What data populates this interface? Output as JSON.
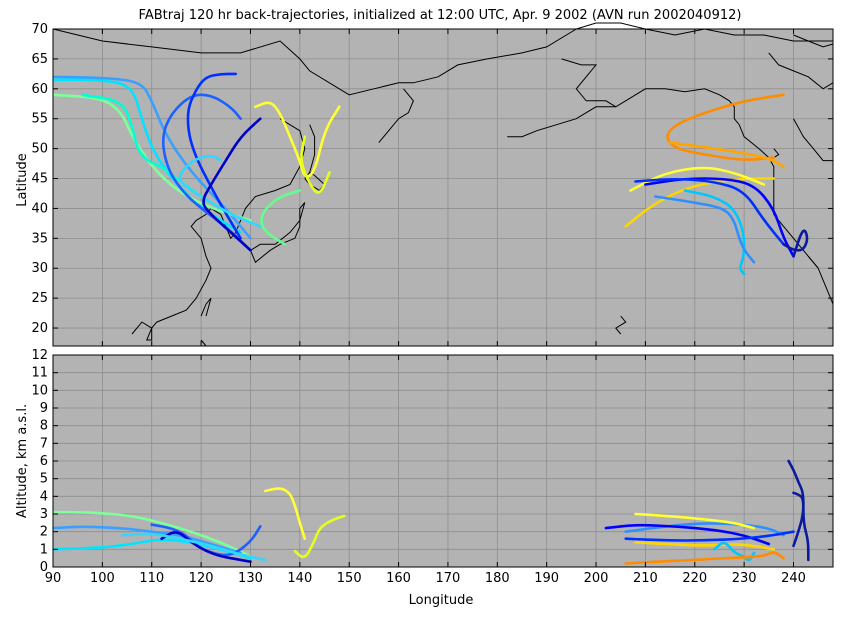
{
  "chart_data": [
    {
      "type": "line",
      "title": "FABtraj 120 hr back-trajectories, initialized at 12:00 UTC, Apr. 9 2002 (AVN run 2002040912)",
      "ylabel": "Latitude",
      "xlim": [
        90,
        248
      ],
      "ylim": [
        17,
        70
      ],
      "x_ticks": [],
      "y_ticks": [
        "20",
        "25",
        "30",
        "35",
        "40",
        "45",
        "50",
        "55",
        "60",
        "65",
        "70"
      ],
      "grid": true,
      "background": "#b3b3b3",
      "coastline_color": "#000000",
      "series": [
        {
          "color": "#00e5ff",
          "x": [
            90,
            100,
            106,
            108,
            110,
            114,
            120,
            128
          ],
          "y": [
            61.5,
            61.5,
            60.5,
            55,
            50,
            45,
            40,
            36
          ]
        },
        {
          "color": "#3aa0ff",
          "x": [
            90,
            102,
            108,
            110,
            113,
            118,
            125,
            130
          ],
          "y": [
            62,
            61.8,
            61,
            58,
            52,
            46,
            40,
            35
          ]
        },
        {
          "color": "#7dff9a",
          "x": [
            90,
            100,
            104,
            106,
            110,
            115,
            122,
            130
          ],
          "y": [
            59,
            58.5,
            56,
            52,
            47,
            43,
            40,
            38
          ]
        },
        {
          "color": "#00ffd5",
          "x": [
            96,
            104,
            106,
            107,
            109,
            112,
            115,
            120
          ],
          "y": [
            59,
            58,
            54,
            50,
            48,
            47,
            45,
            42
          ]
        },
        {
          "color": "#1e60ff",
          "x": [
            128,
            126,
            122,
            118,
            114,
            112,
            113,
            116,
            120,
            125,
            130
          ],
          "y": [
            55,
            57,
            59,
            59,
            56,
            52,
            47,
            43,
            40,
            37,
            33
          ]
        },
        {
          "color": "#0030ff",
          "x": [
            127,
            124,
            121,
            119,
            117,
            118,
            123,
            128
          ],
          "y": [
            62.5,
            62.5,
            62,
            60,
            56,
            50,
            42,
            35
          ]
        },
        {
          "color": "#33d6ff",
          "x": [
            124,
            122,
            118,
            115,
            118,
            122,
            126,
            132
          ],
          "y": [
            48,
            49,
            48,
            45,
            43,
            41,
            39,
            37
          ]
        },
        {
          "color": "#0000c8",
          "x": [
            132,
            128,
            125,
            122,
            120,
            122,
            126,
            130
          ],
          "y": [
            55,
            52,
            48,
            44,
            41,
            39,
            36,
            33
          ]
        },
        {
          "color": "#62ff8a",
          "x": [
            140,
            136,
            133,
            132,
            133,
            137
          ],
          "y": [
            43,
            42,
            40,
            38,
            36,
            34
          ]
        },
        {
          "color": "#ffff33",
          "x": [
            131,
            134,
            136,
            138,
            140,
            141,
            143,
            145,
            148
          ],
          "y": [
            57,
            58,
            56,
            52,
            48,
            45,
            46,
            53,
            57
          ]
        },
        {
          "color": "#e6ff1a",
          "x": [
            141,
            140,
            142,
            144,
            146
          ],
          "y": [
            52,
            48,
            44,
            42,
            46
          ]
        },
        {
          "color": "#ff8c00",
          "x": [
            238,
            230,
            222,
            216,
            214,
            216,
            222,
            230,
            236
          ],
          "y": [
            59,
            58,
            56,
            54,
            52,
            50,
            49,
            48,
            48.5
          ]
        },
        {
          "color": "#ffa500",
          "x": [
            215,
            224,
            232,
            236,
            238
          ],
          "y": [
            51,
            50,
            49,
            48,
            47
          ]
        },
        {
          "color": "#ffd500",
          "x": [
            206,
            212,
            220,
            230,
            236
          ],
          "y": [
            37,
            41,
            44,
            45,
            45
          ]
        },
        {
          "color": "#ffff33",
          "x": [
            207,
            214,
            222,
            228,
            234
          ],
          "y": [
            43,
            46,
            47,
            46,
            44
          ]
        },
        {
          "color": "#0000ff",
          "x": [
            210,
            218,
            226,
            232,
            236,
            238,
            240
          ],
          "y": [
            44,
            45,
            45,
            44,
            40,
            35,
            32
          ]
        },
        {
          "color": "#0030ff",
          "x": [
            208,
            216,
            224,
            230,
            234,
            238
          ],
          "y": [
            44.5,
            45,
            44.5,
            43,
            38,
            34
          ]
        },
        {
          "color": "#00c8ff",
          "x": [
            218,
            224,
            228,
            230,
            230,
            229,
            230
          ],
          "y": [
            43,
            42,
            40,
            36,
            32,
            30,
            29
          ]
        },
        {
          "color": "#2e8fff",
          "x": [
            212,
            220,
            226,
            228,
            229,
            230,
            232
          ],
          "y": [
            42,
            41,
            40,
            38,
            35,
            33,
            31
          ]
        },
        {
          "color": "#0a1aa0",
          "x": [
            238,
            240,
            242,
            243,
            242,
            240
          ],
          "y": [
            34,
            33,
            33,
            35,
            37,
            32
          ]
        }
      ]
    },
    {
      "type": "line",
      "xlabel": "Longitude",
      "ylabel": "Altitude, km a.s.l.",
      "xlim": [
        90,
        248
      ],
      "ylim": [
        0,
        12
      ],
      "x_ticks": [
        "90",
        "100",
        "110",
        "120",
        "130",
        "140",
        "150",
        "160",
        "170",
        "180",
        "190",
        "200",
        "210",
        "220",
        "230",
        "240"
      ],
      "y_ticks": [
        "0",
        "1",
        "2",
        "3",
        "4",
        "5",
        "6",
        "7",
        "8",
        "9",
        "10",
        "11",
        "12"
      ],
      "grid": true,
      "background": "#b3b3b3",
      "series": [
        {
          "color": "#7dff9a",
          "x": [
            90,
            98,
            106,
            112,
            118,
            124,
            130
          ],
          "y": [
            3.1,
            3.1,
            2.9,
            2.5,
            2,
            1.4,
            0.6
          ]
        },
        {
          "color": "#00e5ff",
          "x": [
            90,
            100,
            106,
            112,
            118,
            124,
            130
          ],
          "y": [
            1,
            1.1,
            1.3,
            1.6,
            1.4,
            1,
            0.5
          ]
        },
        {
          "color": "#3aa0ff",
          "x": [
            90,
            96,
            104,
            110,
            116,
            122,
            128
          ],
          "y": [
            2.2,
            2.3,
            2.2,
            2,
            1.8,
            1.3,
            0.8
          ]
        },
        {
          "color": "#1e60ff",
          "x": [
            110,
            114,
            117,
            119,
            122,
            126,
            130,
            132
          ],
          "y": [
            2.4,
            2.2,
            1.8,
            1.2,
            0.8,
            0.6,
            1.4,
            2.3
          ]
        },
        {
          "color": "#0000c8",
          "x": [
            112,
            115,
            118,
            121,
            124,
            128,
            130
          ],
          "y": [
            1.6,
            2.1,
            1.4,
            0.9,
            0.6,
            0.4,
            0.3
          ]
        },
        {
          "color": "#33d6ff",
          "x": [
            104,
            110,
            116,
            122,
            128,
            133
          ],
          "y": [
            1.8,
            1.9,
            1.6,
            1.2,
            0.7,
            0.4
          ]
        },
        {
          "color": "#ffff33",
          "x": [
            133,
            136,
            138,
            139,
            140,
            141
          ],
          "y": [
            4.3,
            4.5,
            4.2,
            3.5,
            2.5,
            1.6
          ]
        },
        {
          "color": "#e6ff1a",
          "x": [
            139,
            141,
            143,
            144,
            146,
            149
          ],
          "y": [
            0.9,
            0.4,
            1.5,
            2.2,
            2.6,
            2.9
          ]
        },
        {
          "color": "#0a1aa0",
          "x": [
            239,
            240,
            241,
            242,
            242,
            241,
            240
          ],
          "y": [
            6,
            5.5,
            4.8,
            4.2,
            3,
            2,
            1.2
          ]
        },
        {
          "color": "#0a1aa0",
          "x": [
            240,
            241,
            242,
            242,
            243,
            243
          ],
          "y": [
            4.2,
            4.1,
            3.9,
            2.5,
            1.5,
            0.4
          ]
        },
        {
          "color": "#2e8fff",
          "x": [
            206,
            214,
            222,
            230,
            235,
            238
          ],
          "y": [
            2,
            2.3,
            2.5,
            2.4,
            2.2,
            1.8
          ]
        },
        {
          "color": "#0000ff",
          "x": [
            202,
            208,
            216,
            224,
            230,
            235
          ],
          "y": [
            2.2,
            2.4,
            2.3,
            2.1,
            1.8,
            1.3
          ]
        },
        {
          "color": "#ffd500",
          "x": [
            208,
            214,
            222,
            228,
            232,
            236
          ],
          "y": [
            1.4,
            1.3,
            1.2,
            1.3,
            1.2,
            1
          ]
        },
        {
          "color": "#ffff33",
          "x": [
            208,
            214,
            222,
            228,
            232
          ],
          "y": [
            3,
            2.9,
            2.7,
            2.5,
            2.2
          ]
        },
        {
          "color": "#00c8ff",
          "x": [
            224,
            226,
            228,
            230,
            231,
            232
          ],
          "y": [
            1,
            1.5,
            0.8,
            0.6,
            0.3,
            0.8
          ]
        },
        {
          "color": "#ff8c00",
          "x": [
            206,
            212,
            220,
            226,
            234,
            236,
            238
          ],
          "y": [
            0.2,
            0.3,
            0.4,
            0.5,
            0.6,
            0.9,
            0.5
          ]
        },
        {
          "color": "#0030ff",
          "x": [
            206,
            214,
            222,
            230,
            236,
            240
          ],
          "y": [
            1.6,
            1.5,
            1.5,
            1.6,
            1.8,
            2
          ]
        }
      ]
    }
  ]
}
